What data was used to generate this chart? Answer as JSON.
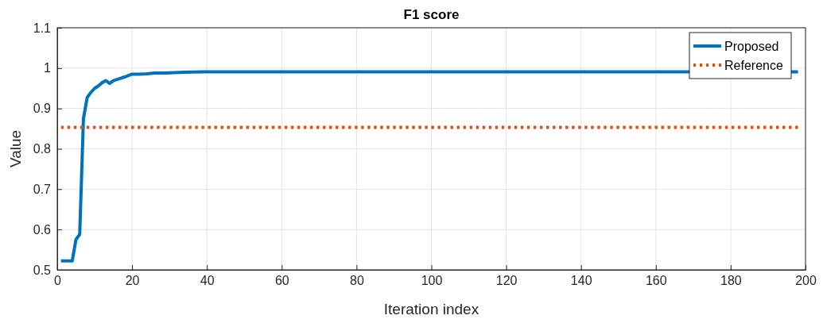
{
  "chart_data": {
    "type": "line",
    "title": "F1 score",
    "xlabel": "Iteration index",
    "ylabel": "Value",
    "xlim": [
      0,
      200
    ],
    "xticks": [
      0,
      20,
      40,
      60,
      80,
      100,
      120,
      140,
      160,
      180,
      200
    ],
    "ylim": [
      0.5,
      1.1
    ],
    "yticks": [
      0.5,
      0.6,
      0.7,
      0.8,
      0.9,
      1,
      1.1
    ],
    "grid": true,
    "legend": "top right",
    "series": [
      {
        "name": "Proposed",
        "color": "#0072bd",
        "line_style": "solid",
        "x": [
          1,
          2,
          3,
          4,
          5,
          6,
          7,
          8,
          9,
          10,
          11,
          12,
          13,
          14,
          15,
          16,
          18,
          20,
          22,
          24,
          26,
          29,
          34,
          40,
          198
        ],
        "values": [
          0.522,
          0.522,
          0.522,
          0.522,
          0.575,
          0.588,
          0.875,
          0.927,
          0.94,
          0.95,
          0.956,
          0.964,
          0.969,
          0.962,
          0.969,
          0.972,
          0.978,
          0.985,
          0.985,
          0.986,
          0.988,
          0.988,
          0.99,
          0.991,
          0.991
        ]
      },
      {
        "name": "Reference",
        "color": "#d95319",
        "line_style": "dotted",
        "x": [
          1,
          198
        ],
        "values": [
          0.853,
          0.853
        ]
      }
    ]
  }
}
